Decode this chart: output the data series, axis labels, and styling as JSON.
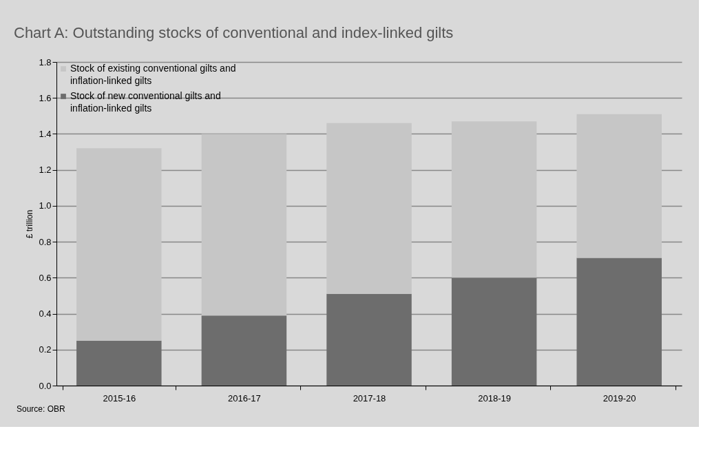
{
  "chart_data": {
    "type": "bar",
    "title": "Chart A: Outstanding stocks of conventional and index-linked gilts",
    "ylabel": "£ trillion",
    "categories": [
      "2015-16",
      "2016-17",
      "2017-18",
      "2018-19",
      "2019-20"
    ],
    "stacked": true,
    "series": [
      {
        "name": "Stock of new conventional gilts and inflation-linked gilts",
        "color": "#6d6d6d",
        "values": [
          0.25,
          0.39,
          0.51,
          0.6,
          0.71
        ]
      },
      {
        "name": "Stock of existing conventional gilts and inflation-linked gilts",
        "color": "#c6c6c6",
        "values": [
          1.07,
          1.01,
          0.95,
          0.87,
          0.8
        ]
      }
    ],
    "ylim": [
      0,
      1.8
    ],
    "yticks": [
      {
        "value": 0,
        "label": "0.0"
      },
      {
        "value": 0.2,
        "label": "0.2"
      },
      {
        "value": 0.4,
        "label": "0.4"
      },
      {
        "value": 0.6,
        "label": "0.6"
      },
      {
        "value": 0.8,
        "label": "0.8"
      },
      {
        "value": 1.0,
        "label": "1.0"
      },
      {
        "value": 1.2,
        "label": "1.2"
      },
      {
        "value": 1.4,
        "label": "1.4"
      },
      {
        "value": 1.6,
        "label": "1.6"
      },
      {
        "value": 1.8,
        "label": "1.8"
      }
    ],
    "grid": "y",
    "legend": "top left",
    "annotations": [
      "Source: OBR"
    ]
  }
}
